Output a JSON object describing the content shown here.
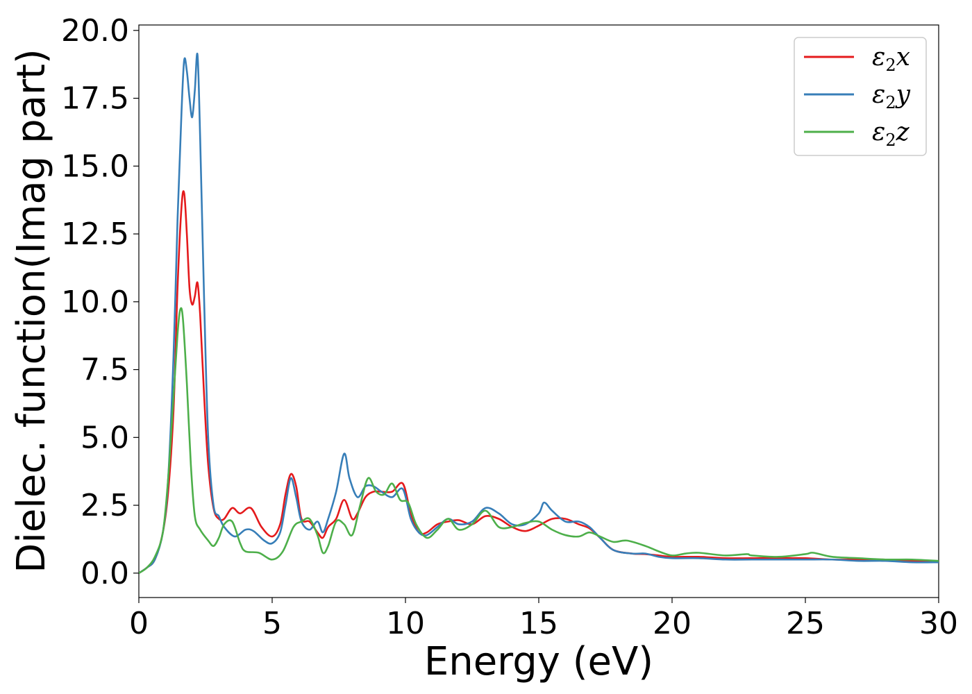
{
  "chart_data": {
    "type": "line",
    "title": "",
    "xlabel": "Energy (eV)",
    "ylabel": "Dielec. function(Imag part)",
    "xlim": [
      0,
      30
    ],
    "ylim": [
      -0.9,
      20.2
    ],
    "xticks": [
      0,
      5,
      10,
      15,
      20,
      25,
      30
    ],
    "xtick_labels": [
      "0",
      "5",
      "10",
      "15",
      "20",
      "25",
      "30"
    ],
    "yticks": [
      0.0,
      2.5,
      5.0,
      7.5,
      10.0,
      12.5,
      15.0,
      17.5,
      20.0
    ],
    "ytick_labels": [
      "0.0",
      "2.5",
      "5.0",
      "7.5",
      "10.0",
      "12.5",
      "15.0",
      "17.5",
      "20.0"
    ],
    "grid": false,
    "legend_position": "top-right",
    "series": [
      {
        "name": "ε2x",
        "base": "ε",
        "sub": "2",
        "suffix": "x",
        "color": "#e41a1c",
        "x": [
          0,
          0.3,
          0.6,
          0.9,
          1.1,
          1.3,
          1.45,
          1.6,
          1.7,
          1.8,
          1.9,
          2.0,
          2.1,
          2.2,
          2.3,
          2.45,
          2.6,
          2.8,
          3.0,
          3.2,
          3.5,
          3.8,
          4.2,
          4.6,
          5.0,
          5.3,
          5.5,
          5.7,
          5.9,
          6.1,
          6.4,
          6.7,
          6.9,
          7.1,
          7.4,
          7.7,
          8.0,
          8.2,
          8.5,
          8.8,
          9.1,
          9.5,
          9.9,
          10.2,
          10.5,
          10.8,
          11.2,
          11.6,
          12.0,
          12.5,
          13.0,
          13.5,
          14.0,
          14.5,
          15.0,
          15.5,
          16.0,
          16.5,
          16.9,
          17.3,
          17.8,
          18.5,
          19.0,
          19.5,
          20.0,
          21,
          22,
          23,
          24,
          25,
          26,
          27,
          28,
          29,
          30
        ],
        "y": [
          0.0,
          0.2,
          0.5,
          1.5,
          3.0,
          6.0,
          10.5,
          13.5,
          14.0,
          12.5,
          10.5,
          9.9,
          10.2,
          10.7,
          9.5,
          6.5,
          4.0,
          2.4,
          2.0,
          2.0,
          2.4,
          2.2,
          2.4,
          1.7,
          1.35,
          1.8,
          2.9,
          3.65,
          3.2,
          2.0,
          1.9,
          1.5,
          1.3,
          1.7,
          2.0,
          2.7,
          2.0,
          2.2,
          2.8,
          3.0,
          3.0,
          3.0,
          3.3,
          2.2,
          1.5,
          1.5,
          1.8,
          1.9,
          1.95,
          1.8,
          2.1,
          2.0,
          1.7,
          1.55,
          1.75,
          2.0,
          2.0,
          1.8,
          1.65,
          1.3,
          0.85,
          0.72,
          0.7,
          0.65,
          0.6,
          0.6,
          0.55,
          0.55,
          0.55,
          0.55,
          0.5,
          0.5,
          0.5,
          0.45,
          0.4
        ]
      },
      {
        "name": "ε2y",
        "base": "ε",
        "sub": "2",
        "suffix": "y",
        "color": "#377eb8",
        "x": [
          0,
          0.3,
          0.6,
          0.9,
          1.1,
          1.3,
          1.45,
          1.6,
          1.7,
          1.8,
          1.9,
          2.0,
          2.1,
          2.2,
          2.3,
          2.45,
          2.6,
          2.8,
          3.0,
          3.2,
          3.6,
          4.0,
          4.3,
          4.7,
          5.0,
          5.3,
          5.5,
          5.7,
          5.9,
          6.1,
          6.4,
          6.7,
          6.9,
          7.1,
          7.4,
          7.7,
          7.9,
          8.2,
          8.5,
          8.8,
          9.1,
          9.5,
          9.9,
          10.2,
          10.5,
          10.8,
          11.2,
          11.6,
          12.0,
          12.5,
          13.0,
          13.5,
          14.0,
          14.5,
          15.0,
          15.2,
          15.5,
          16.0,
          16.5,
          16.9,
          17.3,
          17.8,
          18.5,
          19.0,
          19.5,
          20.0,
          21,
          22,
          23,
          24,
          25,
          26,
          27,
          28,
          29,
          30
        ],
        "y": [
          0.0,
          0.2,
          0.5,
          1.5,
          3.5,
          8.0,
          13.0,
          17.0,
          18.9,
          18.5,
          17.5,
          16.8,
          17.8,
          19.1,
          16.0,
          10.0,
          5.0,
          2.5,
          2.1,
          1.7,
          1.35,
          1.6,
          1.55,
          1.2,
          1.1,
          1.5,
          2.5,
          3.5,
          2.8,
          1.9,
          1.6,
          1.9,
          1.5,
          2.0,
          3.0,
          4.4,
          3.5,
          2.8,
          3.2,
          3.2,
          3.0,
          2.8,
          3.1,
          2.0,
          1.5,
          1.4,
          1.7,
          2.0,
          1.8,
          1.9,
          2.4,
          2.2,
          1.8,
          1.8,
          2.2,
          2.6,
          2.3,
          1.9,
          1.9,
          1.7,
          1.3,
          0.85,
          0.72,
          0.72,
          0.6,
          0.55,
          0.55,
          0.5,
          0.5,
          0.5,
          0.5,
          0.5,
          0.45,
          0.45,
          0.4,
          0.4
        ]
      },
      {
        "name": "ε2z",
        "base": "ε",
        "sub": "2",
        "suffix": "z",
        "color": "#4daf4a",
        "x": [
          0,
          0.3,
          0.6,
          0.9,
          1.1,
          1.3,
          1.45,
          1.55,
          1.65,
          1.8,
          1.95,
          2.1,
          2.3,
          2.6,
          2.8,
          3.0,
          3.2,
          3.5,
          3.8,
          4.0,
          4.5,
          5.0,
          5.4,
          5.8,
          6.1,
          6.4,
          6.7,
          6.9,
          7.1,
          7.4,
          7.7,
          8.0,
          8.3,
          8.6,
          8.9,
          9.2,
          9.5,
          9.8,
          10.1,
          10.4,
          10.8,
          11.2,
          11.6,
          12.0,
          12.5,
          13.0,
          13.5,
          14.0,
          14.5,
          15.0,
          15.5,
          16.0,
          16.5,
          16.9,
          17.3,
          17.8,
          18.3,
          19.0,
          19.5,
          20.0,
          20.5,
          21,
          22,
          22.8,
          23,
          24,
          25,
          25.3,
          26,
          27,
          28,
          29,
          30
        ],
        "y": [
          0.0,
          0.2,
          0.6,
          1.5,
          3.5,
          6.5,
          8.8,
          9.7,
          9.4,
          7.0,
          4.0,
          2.1,
          1.6,
          1.2,
          1.0,
          1.3,
          1.8,
          1.9,
          1.1,
          0.8,
          0.75,
          0.5,
          0.8,
          1.7,
          1.9,
          2.0,
          1.4,
          0.75,
          1.0,
          1.9,
          1.8,
          1.4,
          2.5,
          3.5,
          3.0,
          2.9,
          3.3,
          2.7,
          2.6,
          1.8,
          1.3,
          1.6,
          2.0,
          1.6,
          1.8,
          2.3,
          1.7,
          1.7,
          1.85,
          1.9,
          1.6,
          1.4,
          1.35,
          1.5,
          1.35,
          1.15,
          1.2,
          1.0,
          0.8,
          0.65,
          0.72,
          0.75,
          0.65,
          0.7,
          0.65,
          0.6,
          0.7,
          0.75,
          0.6,
          0.55,
          0.5,
          0.5,
          0.45
        ]
      }
    ]
  }
}
